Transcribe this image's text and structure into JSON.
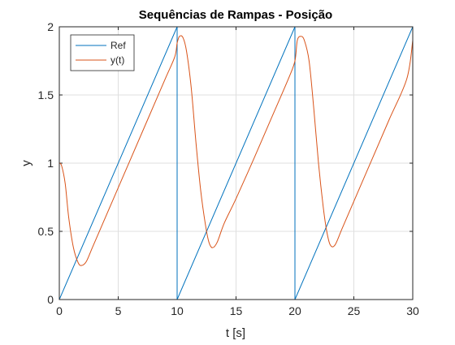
{
  "chart_data": {
    "type": "line",
    "title": "Sequências de Rampas - Posição",
    "xlabel": "t [s]",
    "ylabel": "y",
    "xlim": [
      0,
      30
    ],
    "ylim": [
      0,
      2
    ],
    "xticks": [
      0,
      5,
      10,
      15,
      20,
      25,
      30
    ],
    "xtick_labels": [
      "0",
      "5",
      "10",
      "15",
      "20",
      "25",
      "30"
    ],
    "yticks": [
      0,
      0.5,
      1,
      1.5,
      2
    ],
    "ytick_labels": [
      "0",
      "0.5",
      "1",
      "1.5",
      "2"
    ],
    "grid": true,
    "legend_position": "top-left",
    "series": [
      {
        "name": "Ref",
        "color": "#0072bd",
        "x": [
          0,
          10,
          10,
          20,
          20,
          30,
          30
        ],
        "y": [
          0,
          2,
          0,
          2,
          0,
          2,
          0
        ]
      },
      {
        "name": "y(t)",
        "color": "#d95319",
        "x": [
          0,
          0.2,
          0.5,
          0.8,
          1.2,
          1.6,
          1.9,
          2.3,
          2.8,
          3.5,
          4.5,
          6,
          7.5,
          9,
          9.8,
          10.0,
          10.2,
          10.5,
          10.8,
          11.2,
          11.6,
          12.0,
          12.4,
          12.7,
          13.0,
          13.4,
          14.0,
          15,
          16.5,
          18,
          19.5,
          20.0,
          20.2,
          20.5,
          20.8,
          21.2,
          21.6,
          22.0,
          22.4,
          22.7,
          23.0,
          23.4,
          24.0,
          25,
          26.5,
          28,
          29.5,
          30
        ],
        "y": [
          1.0,
          0.98,
          0.85,
          0.6,
          0.38,
          0.27,
          0.25,
          0.28,
          0.38,
          0.52,
          0.72,
          1.02,
          1.32,
          1.62,
          1.78,
          1.88,
          1.93,
          1.92,
          1.82,
          1.55,
          1.15,
          0.8,
          0.55,
          0.42,
          0.38,
          0.42,
          0.56,
          0.74,
          1.03,
          1.33,
          1.63,
          1.75,
          1.9,
          1.93,
          1.9,
          1.75,
          1.4,
          1.0,
          0.68,
          0.5,
          0.4,
          0.4,
          0.52,
          0.72,
          1.02,
          1.32,
          1.62,
          1.9
        ]
      }
    ]
  }
}
